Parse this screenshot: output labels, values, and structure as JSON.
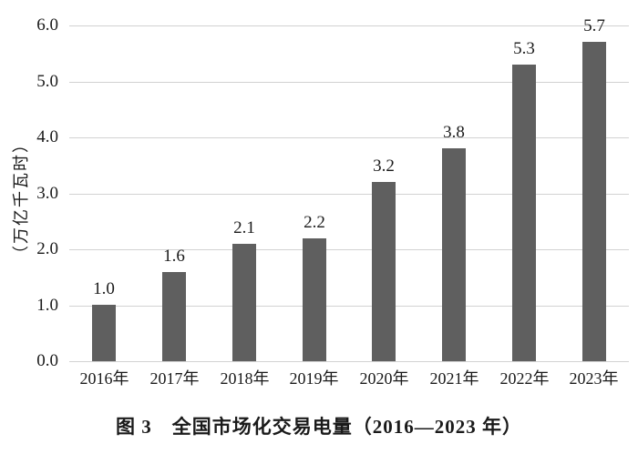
{
  "caption": "图 3　全国市场化交易电量（2016—2023 年）",
  "y_axis_title": "（万亿千瓦时）",
  "chart_data": {
    "type": "bar",
    "title": "图 3 全国市场化交易电量（2016—2023 年）",
    "categories": [
      "2016年",
      "2017年",
      "2018年",
      "2019年",
      "2020年",
      "2021年",
      "2022年",
      "2023年"
    ],
    "values": [
      1.0,
      1.6,
      2.1,
      2.2,
      3.2,
      3.8,
      5.3,
      5.7
    ],
    "value_labels": [
      "1.0",
      "1.6",
      "2.1",
      "2.2",
      "3.2",
      "3.8",
      "5.3",
      "5.7"
    ],
    "xlabel": "",
    "ylabel": "（万亿千瓦时）",
    "ylim": [
      0.0,
      6.0
    ],
    "ytick_interval": 1.0,
    "ytick_labels": [
      "0.0",
      "1.0",
      "2.0",
      "3.0",
      "4.0",
      "5.0",
      "6.0"
    ],
    "grid": "horizontal",
    "legend_position": "none",
    "bar_color": "#5f5f5f",
    "gridline_color": "#d2d2d2",
    "text_color": "#1a1a1a",
    "background_color": "#ffffff"
  }
}
